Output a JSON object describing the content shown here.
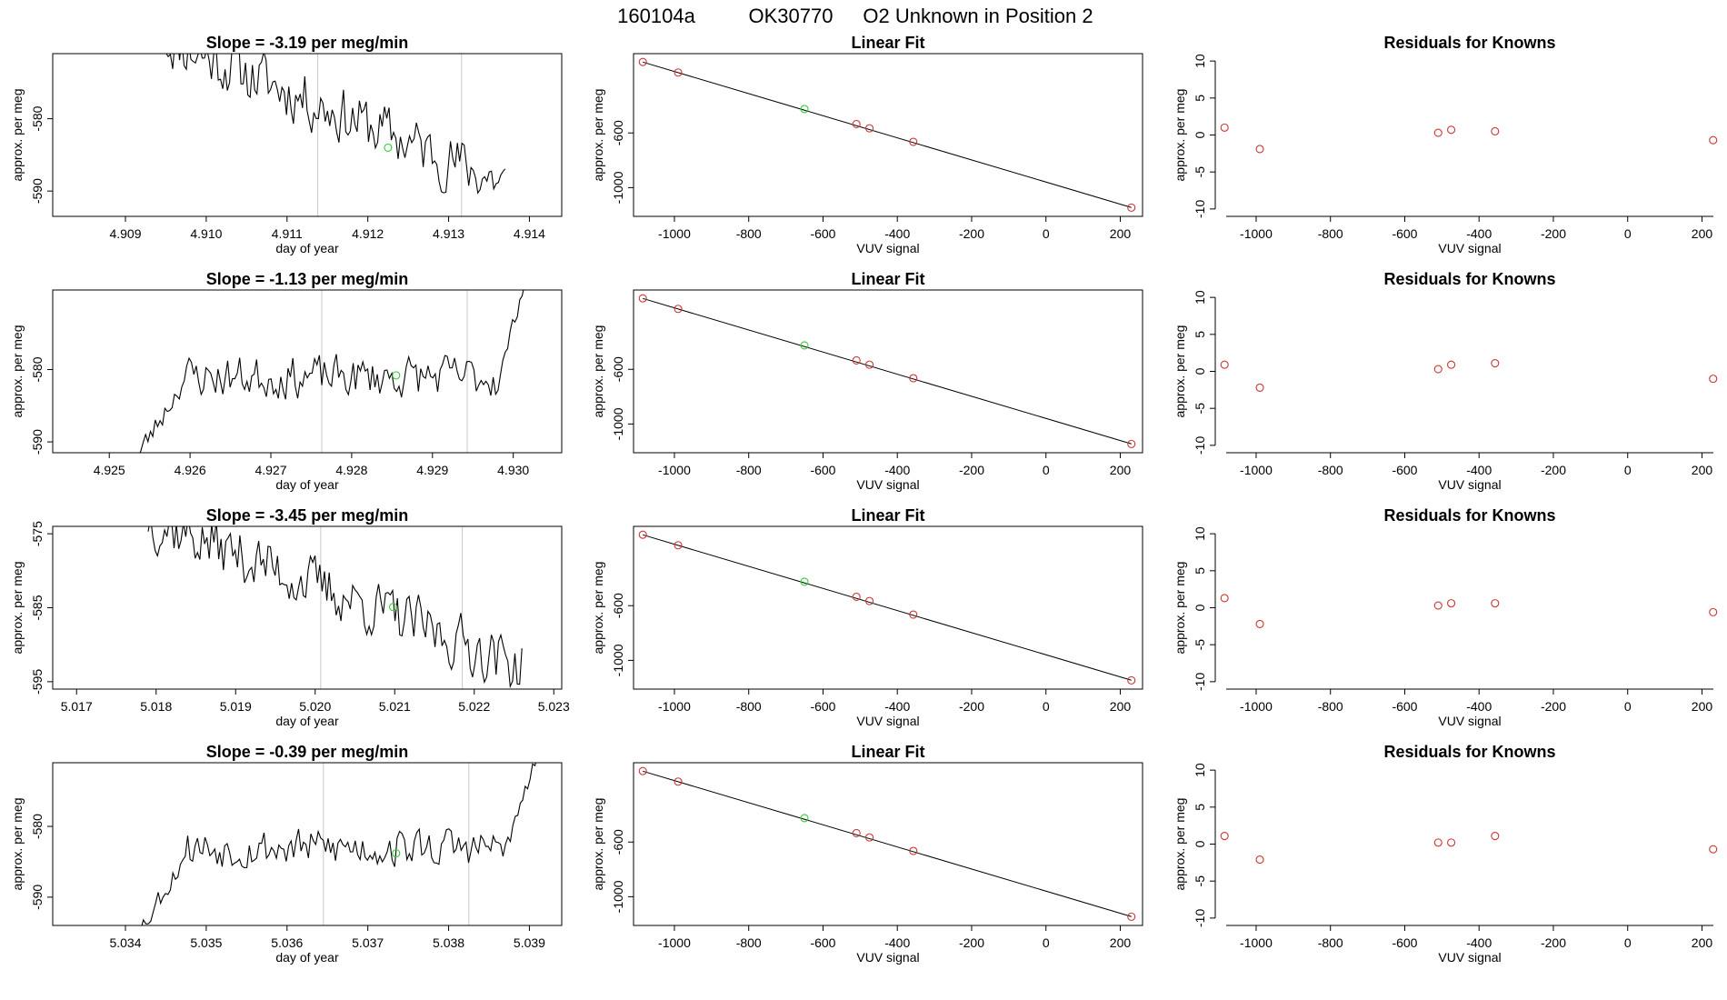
{
  "page": {
    "title_parts": [
      "160104a",
      "OK30770",
      "O2 Unknown in Position  2"
    ]
  },
  "colors": {
    "known_points": "#cd3333",
    "unknown_point": "#33cc33",
    "marker_lines": "#c8c8c8",
    "trace": "#000000"
  },
  "chart_data": [
    {
      "type": "line",
      "panel": "drift",
      "row": 0,
      "title": "Slope =  -3.19  per meg/min",
      "xlabel": "day of year",
      "ylabel": "approx. per meg",
      "xlim": [
        4.9081,
        4.9144
      ],
      "ylim": [
        -593.5,
        -571
      ],
      "xticks": [
        "4.909",
        "4.910",
        "4.911",
        "4.912",
        "4.913",
        "4.914"
      ],
      "yticks": [
        "-580",
        "-590"
      ],
      "ytick_values": [
        -580,
        -590
      ],
      "vlines": [
        4.91138,
        4.91316
      ],
      "unknown_point": {
        "x": 4.91225,
        "y": -584.0
      },
      "series": [
        {
          "name": "trace",
          "x_start": 4.9095,
          "x_end": 4.9137,
          "samples": 150,
          "trend": [
            -569,
            -589
          ],
          "noise": 3.6,
          "seed": 11
        }
      ]
    },
    {
      "type": "line",
      "panel": "linear-fit",
      "row": 0,
      "title": "Linear Fit",
      "xlabel": "VUV signal",
      "ylabel": "approx. per meg",
      "xlim": [
        -1110,
        260
      ],
      "ylim": [
        -1210,
        -20
      ],
      "xticks": [
        "-1000",
        "-800",
        "-600",
        "-400",
        "-200",
        "0",
        "200"
      ],
      "yticks": [
        "-600",
        "-1000"
      ],
      "ytick_values": [
        -600,
        -1000
      ],
      "fit_line": {
        "x": [
          -1085,
          230
        ],
        "y": [
          -82,
          -1145
        ]
      },
      "known_points": {
        "x": [
          -1085,
          -990,
          -510,
          -475,
          -357,
          230
        ],
        "y": [
          -81,
          -158,
          -535,
          -566,
          -665,
          -1146
        ]
      },
      "unknown_points": {
        "x": [
          -650
        ],
        "y": [
          -425
        ]
      }
    },
    {
      "type": "scatter",
      "panel": "residuals",
      "row": 0,
      "title": "Residuals for Knowns",
      "xlabel": "VUV signal",
      "ylabel": "approx. per meg",
      "xlim": [
        -1110,
        260
      ],
      "ylim": [
        -11,
        11
      ],
      "xticks": [
        "-1000",
        "-800",
        "-600",
        "-400",
        "-200",
        "0",
        "200"
      ],
      "yticks": [
        "10",
        "5",
        "0",
        "-5",
        "-10"
      ],
      "ytick_values": [
        10,
        5,
        0,
        -5,
        -10
      ],
      "known_points": {
        "x": [
          -1085,
          -990,
          -510,
          -475,
          -357,
          230
        ],
        "y": [
          1.0,
          -1.9,
          0.3,
          0.7,
          0.5,
          -0.7
        ]
      }
    },
    {
      "type": "line",
      "panel": "drift",
      "row": 1,
      "title": "Slope =  -1.13  per meg/min",
      "xlabel": "day of year",
      "ylabel": "approx. per meg",
      "xlim": [
        4.9243,
        4.9306
      ],
      "ylim": [
        -591.5,
        -569
      ],
      "xticks": [
        "4.925",
        "4.926",
        "4.927",
        "4.928",
        "4.929",
        "4.930"
      ],
      "yticks": [
        "-580",
        "-590"
      ],
      "ytick_values": [
        -580,
        -590
      ],
      "vlines": [
        4.92763,
        4.92943
      ],
      "unknown_point": {
        "x": 4.92855,
        "y": -580.8
      },
      "series": [
        {
          "name": "trace",
          "x_start": 4.9253,
          "x_end": 4.9302,
          "samples": 165,
          "trend": [
            -581,
            -581
          ],
          "noise": 2.6,
          "seed": 23,
          "start_ramp": [
            -593,
            -582
          ],
          "end_ramp": [
            -580,
            -565
          ]
        }
      ]
    },
    {
      "type": "line",
      "panel": "linear-fit",
      "row": 1,
      "title": "Linear Fit",
      "xlabel": "VUV signal",
      "ylabel": "approx. per meg",
      "xlim": [
        -1110,
        260
      ],
      "ylim": [
        -1210,
        -20
      ],
      "xticks": [
        "-1000",
        "-800",
        "-600",
        "-400",
        "-200",
        "0",
        "200"
      ],
      "yticks": [
        "-600",
        "-1000"
      ],
      "ytick_values": [
        -600,
        -1000
      ],
      "fit_line": {
        "x": [
          -1085,
          230
        ],
        "y": [
          -82,
          -1145
        ]
      },
      "known_points": {
        "x": [
          -1085,
          -990,
          -510,
          -475,
          -357,
          230
        ],
        "y": [
          -81,
          -158,
          -535,
          -566,
          -665,
          -1146
        ]
      },
      "unknown_points": {
        "x": [
          -650
        ],
        "y": [
          -425
        ]
      }
    },
    {
      "type": "scatter",
      "panel": "residuals",
      "row": 1,
      "title": "Residuals for Knowns",
      "xlabel": "VUV signal",
      "ylabel": "approx. per meg",
      "xlim": [
        -1110,
        260
      ],
      "ylim": [
        -11,
        11
      ],
      "xticks": [
        "-1000",
        "-800",
        "-600",
        "-400",
        "-200",
        "0",
        "200"
      ],
      "yticks": [
        "10",
        "5",
        "0",
        "-5",
        "-10"
      ],
      "ytick_values": [
        10,
        5,
        0,
        -5,
        -10
      ],
      "known_points": {
        "x": [
          -1085,
          -990,
          -510,
          -475,
          -357,
          230
        ],
        "y": [
          0.9,
          -2.2,
          0.3,
          0.9,
          1.1,
          -1.0
        ]
      }
    },
    {
      "type": "line",
      "panel": "drift",
      "row": 2,
      "title": "Slope =  -3.45  per meg/min",
      "xlabel": "day of year",
      "ylabel": "approx. per meg",
      "xlim": [
        5.0167,
        5.0231
      ],
      "ylim": [
        -596,
        -574
      ],
      "xticks": [
        "5.017",
        "5.018",
        "5.019",
        "5.020",
        "5.021",
        "5.022",
        "5.023"
      ],
      "yticks": [
        "-575",
        "-585",
        "-595"
      ],
      "ytick_values": [
        -575,
        -585,
        -595
      ],
      "vlines": [
        5.02007,
        5.02185
      ],
      "unknown_point": {
        "x": 5.02098,
        "y": -584.9
      },
      "series": [
        {
          "name": "trace",
          "x_start": 5.0179,
          "x_end": 5.0226,
          "samples": 160,
          "trend": [
            -573,
            -593
          ],
          "noise": 3.4,
          "seed": 37
        }
      ]
    },
    {
      "type": "line",
      "panel": "linear-fit",
      "row": 2,
      "title": "Linear Fit",
      "xlabel": "VUV signal",
      "ylabel": "approx. per meg",
      "xlim": [
        -1110,
        260
      ],
      "ylim": [
        -1210,
        -20
      ],
      "xticks": [
        "-1000",
        "-800",
        "-600",
        "-400",
        "-200",
        "0",
        "200"
      ],
      "yticks": [
        "-600",
        "-1000"
      ],
      "ytick_values": [
        -600,
        -1000
      ],
      "fit_line": {
        "x": [
          -1085,
          230
        ],
        "y": [
          -82,
          -1145
        ]
      },
      "known_points": {
        "x": [
          -1085,
          -990,
          -510,
          -475,
          -357,
          230
        ],
        "y": [
          -81,
          -158,
          -535,
          -566,
          -665,
          -1146
        ]
      },
      "unknown_points": {
        "x": [
          -650
        ],
        "y": [
          -425
        ]
      }
    },
    {
      "type": "scatter",
      "panel": "residuals",
      "row": 2,
      "title": "Residuals for Knowns",
      "xlabel": "VUV signal",
      "ylabel": "approx. per meg",
      "xlim": [
        -1110,
        260
      ],
      "ylim": [
        -11,
        11
      ],
      "xticks": [
        "-1000",
        "-800",
        "-600",
        "-400",
        "-200",
        "0",
        "200"
      ],
      "yticks": [
        "10",
        "5",
        "0",
        "-5",
        "-10"
      ],
      "ytick_values": [
        10,
        5,
        0,
        -5,
        -10
      ],
      "known_points": {
        "x": [
          -1085,
          -990,
          -510,
          -475,
          -357,
          230
        ],
        "y": [
          1.3,
          -2.2,
          0.3,
          0.6,
          0.6,
          -0.6
        ]
      }
    },
    {
      "type": "line",
      "panel": "drift",
      "row": 3,
      "title": "Slope =  -0.39  per meg/min",
      "xlabel": "day of year",
      "ylabel": "approx. per meg",
      "xlim": [
        5.0331,
        5.0394
      ],
      "ylim": [
        -594,
        -571
      ],
      "xticks": [
        "5.034",
        "5.035",
        "5.036",
        "5.037",
        "5.038",
        "5.039"
      ],
      "yticks": [
        "-580",
        "-590"
      ],
      "ytick_values": [
        -580,
        -590
      ],
      "vlines": [
        5.03645,
        5.03825
      ],
      "unknown_point": {
        "x": 5.03735,
        "y": -583.8
      },
      "series": [
        {
          "name": "trace",
          "x_start": 5.0341,
          "x_end": 5.0391,
          "samples": 165,
          "trend": [
            -583,
            -583
          ],
          "noise": 2.5,
          "seed": 53,
          "start_ramp": [
            -596,
            -585
          ],
          "end_ramp": [
            -582,
            -570
          ]
        }
      ]
    },
    {
      "type": "line",
      "panel": "linear-fit",
      "row": 3,
      "title": "Linear Fit",
      "xlabel": "VUV signal",
      "ylabel": "approx. per meg",
      "xlim": [
        -1110,
        260
      ],
      "ylim": [
        -1210,
        -20
      ],
      "xticks": [
        "-1000",
        "-800",
        "-600",
        "-400",
        "-200",
        "0",
        "200"
      ],
      "yticks": [
        "-600",
        "-1000"
      ],
      "ytick_values": [
        -600,
        -1000
      ],
      "fit_line": {
        "x": [
          -1085,
          230
        ],
        "y": [
          -82,
          -1145
        ]
      },
      "known_points": {
        "x": [
          -1085,
          -990,
          -510,
          -475,
          -357,
          230
        ],
        "y": [
          -81,
          -158,
          -535,
          -566,
          -665,
          -1146
        ]
      },
      "unknown_points": {
        "x": [
          -650
        ],
        "y": [
          -425
        ]
      }
    },
    {
      "type": "scatter",
      "panel": "residuals",
      "row": 3,
      "title": "Residuals for Knowns",
      "xlabel": "VUV signal",
      "ylabel": "approx. per meg",
      "xlim": [
        -1110,
        260
      ],
      "ylim": [
        -11,
        11
      ],
      "xticks": [
        "-1000",
        "-800",
        "-600",
        "-400",
        "-200",
        "0",
        "200"
      ],
      "yticks": [
        "10",
        "5",
        "0",
        "-5",
        "-10"
      ],
      "ytick_values": [
        10,
        5,
        0,
        -5,
        -10
      ],
      "known_points": {
        "x": [
          -1085,
          -990,
          -510,
          -475,
          -357,
          230
        ],
        "y": [
          1.1,
          -2.1,
          0.2,
          0.2,
          1.1,
          -0.7
        ]
      }
    }
  ]
}
